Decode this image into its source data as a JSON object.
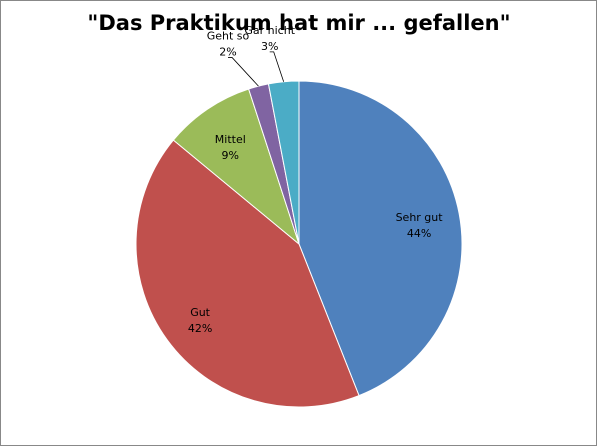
{
  "chart_data": {
    "type": "pie",
    "title": "\"Das Praktikum hat mir ... gefallen\"",
    "categories": [
      "Sehr gut",
      "Gut",
      "Mittel",
      "Geht so",
      "Gar nicht"
    ],
    "values": [
      44,
      42,
      9,
      2,
      3
    ],
    "value_labels": [
      "44%",
      "42%",
      "9%",
      "2%",
      "3%"
    ],
    "colors": [
      "#4f81bd",
      "#c0504d",
      "#9bbb59",
      "#8064a2",
      "#4bacc6"
    ]
  }
}
